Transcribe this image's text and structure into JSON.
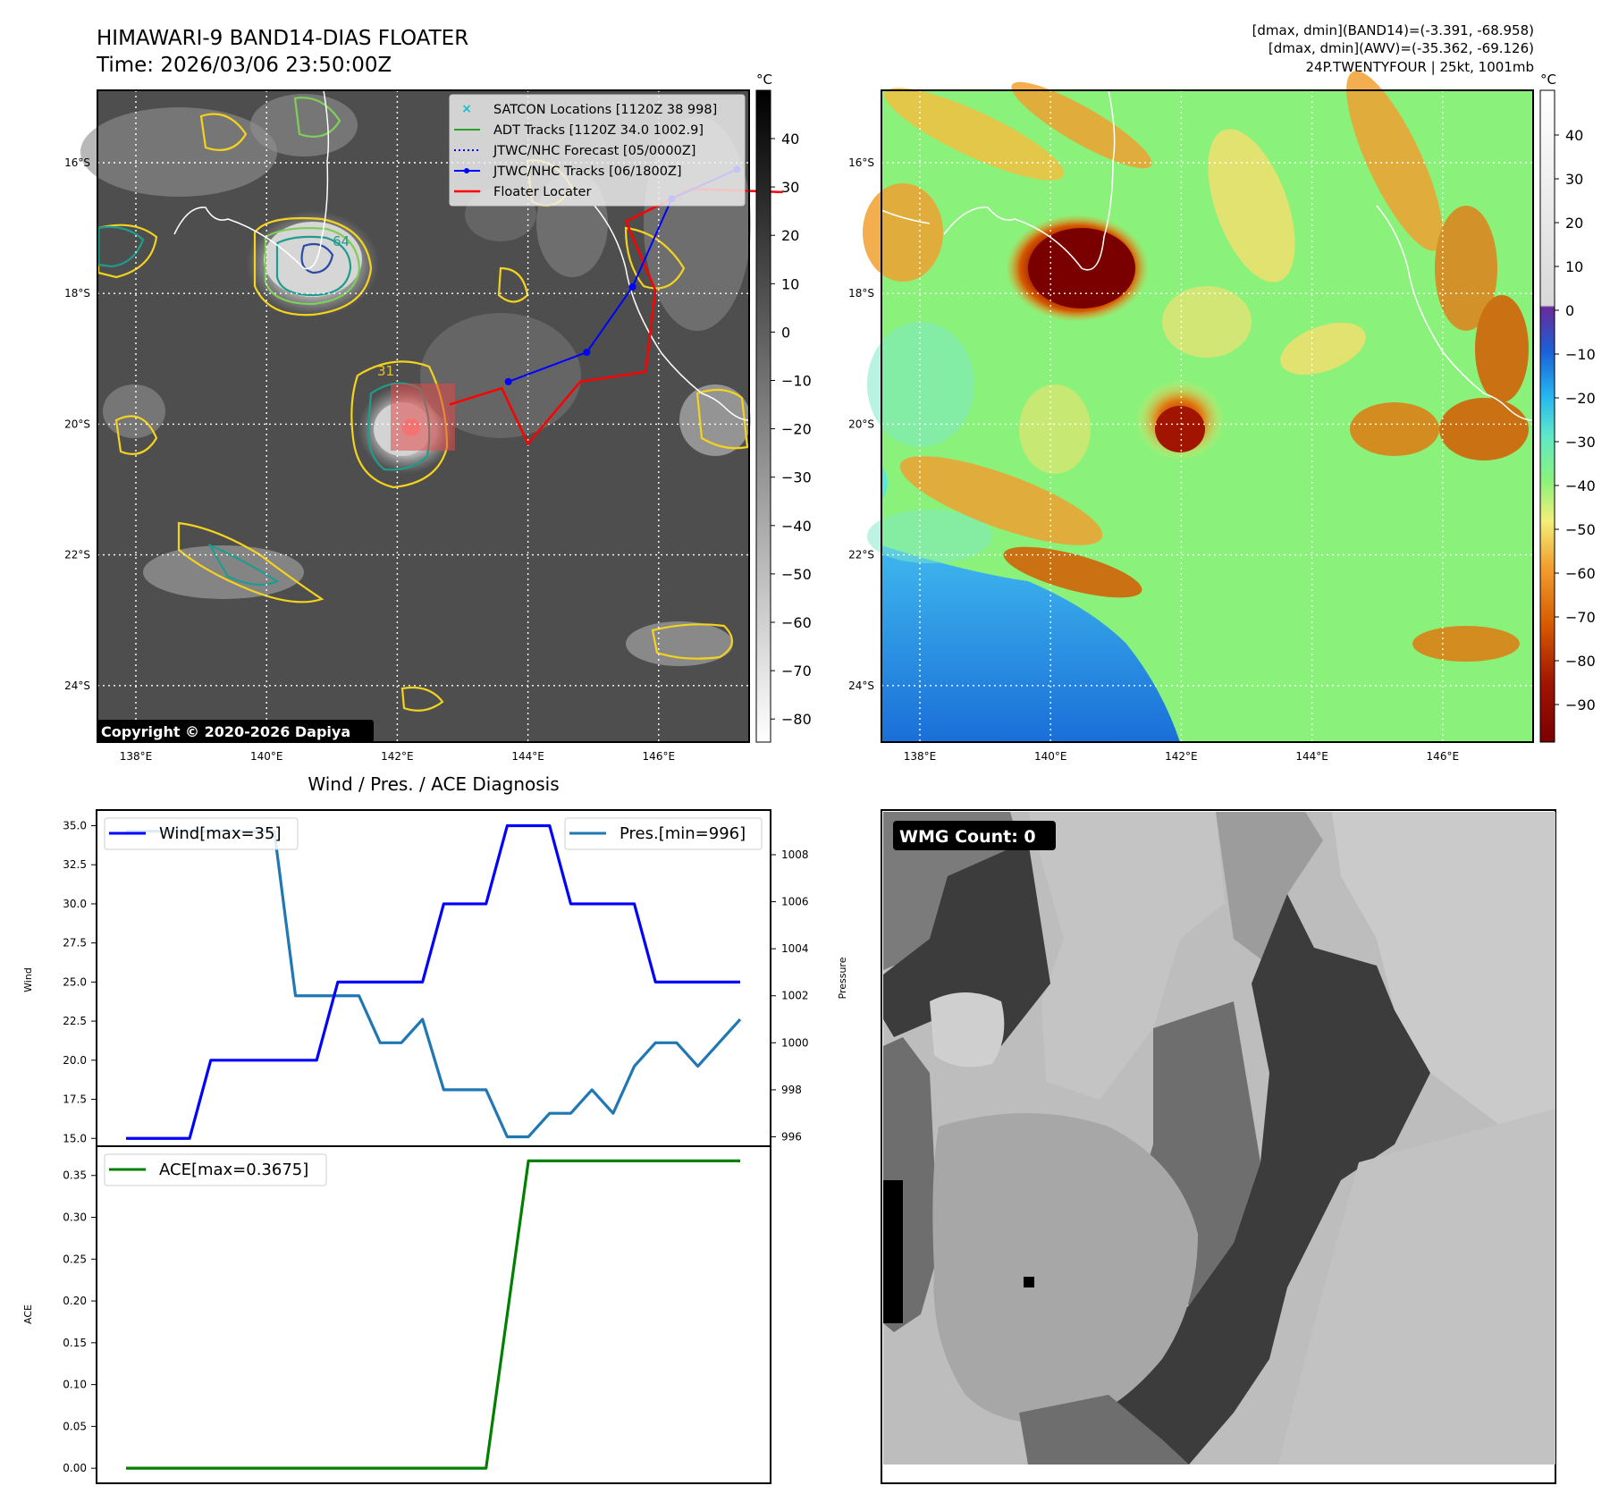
{
  "header": {
    "title_line1": "HIMAWARI-9 BAND14-DIAS FLOATER",
    "title_line2": "Time: 2026/03/06 23:50:00Z",
    "info_line1": "[dmax, dmin](BAND14)=(-3.391, -68.958)",
    "info_line2": "[dmax, dmin](AWV)=(-35.362, -69.126)",
    "info_line3": "24P.TWENTYFOUR | 25kt, 1001mb"
  },
  "maps": {
    "lat_ticks": [
      "16°S",
      "18°S",
      "20°S",
      "22°S",
      "24°S"
    ],
    "lon_ticks": [
      "138°E",
      "140°E",
      "142°E",
      "144°E",
      "146°E"
    ],
    "copyright": "Copyright © 2020-2026 Dapiya",
    "contour_labels": [
      "31",
      "64"
    ],
    "legend": [
      {
        "label": "SATCON Locations [1120Z 38 998]",
        "color": "#17becf"
      },
      {
        "label": "ADT Tracks [1120Z 34.0 1002.9]",
        "color": "#2ca02c"
      },
      {
        "label": "JTWC/NHC Forecast [05/0000Z]",
        "color": "#0000ff"
      },
      {
        "label": "JTWC/NHC Tracks [06/1800Z]",
        "color": "#0000ff"
      },
      {
        "label": "Floater Locater",
        "color": "#ff0000"
      }
    ],
    "track_lonlat": [
      [
        143.7,
        19.35
      ],
      [
        144.9,
        18.9
      ],
      [
        145.6,
        17.9
      ],
      [
        146.2,
        16.55
      ],
      [
        147.2,
        16.1
      ]
    ],
    "locator_lonlat": [
      [
        142.8,
        19.7
      ],
      [
        143.6,
        19.45
      ],
      [
        144.0,
        20.3
      ],
      [
        144.8,
        19.35
      ],
      [
        145.8,
        19.2
      ],
      [
        145.95,
        17.95
      ],
      [
        145.5,
        16.9
      ],
      [
        146.5,
        16.4
      ],
      [
        147.9,
        16.45
      ]
    ],
    "colorbar1": {
      "unit": "°C",
      "ticks": [
        "40",
        "30",
        "20",
        "10",
        "0",
        "−10",
        "−20",
        "−30",
        "−40",
        "−50",
        "−60",
        "−70",
        "−80"
      ]
    },
    "colorbar2": {
      "unit": "°C",
      "ticks": [
        "40",
        "30",
        "20",
        "10",
        "0",
        "−10",
        "−20",
        "−30",
        "−40",
        "−50",
        "−60",
        "−70",
        "−80",
        "−90"
      ]
    }
  },
  "wmg": {
    "label": "WMG Count: 0"
  },
  "chart_data": [
    {
      "type": "line",
      "title": "Wind / Pres. / ACE Diagnosis",
      "x": [
        0,
        1,
        2,
        3,
        4,
        5,
        6,
        7,
        8,
        9,
        10,
        11,
        12,
        13,
        14,
        15,
        16,
        17,
        18,
        19,
        20,
        21,
        22,
        23,
        24,
        25,
        26,
        27,
        28,
        29
      ],
      "series": [
        {
          "name": "Wind[max=35]",
          "color": "#0000ff",
          "axis": "left",
          "values": [
            15,
            15,
            15,
            15,
            20,
            20,
            20,
            20,
            20,
            20,
            25,
            25,
            25,
            25,
            25,
            30,
            30,
            30,
            35,
            35,
            35,
            30,
            30,
            30,
            30,
            25,
            25,
            25,
            25,
            25
          ]
        },
        {
          "name": "Pres.[min=996]",
          "color": "#1f77b4",
          "axis": "right",
          "values": [
            1009,
            1009,
            1009,
            1009,
            1009,
            1009,
            1009,
            1009,
            1002,
            1002,
            1002,
            1002,
            1000,
            1000,
            1001,
            998,
            998,
            998,
            996,
            996,
            997,
            997,
            998,
            997,
            999,
            1000,
            1000,
            999,
            1000,
            1001
          ]
        }
      ],
      "ylabel": "Wind",
      "y2label": "Pressure",
      "ylim": [
        14.5,
        36
      ],
      "y2lim": [
        995.6,
        1009.9
      ],
      "yticks": [
        "35.0",
        "32.5",
        "30.0",
        "27.5",
        "25.0",
        "22.5",
        "20.0",
        "17.5",
        "15.0"
      ],
      "y2ticks": [
        "1008",
        "1006",
        "1004",
        "1002",
        "1000",
        "998",
        "996"
      ]
    },
    {
      "type": "line",
      "x": [
        0,
        1,
        2,
        3,
        4,
        5,
        6,
        7,
        8,
        9,
        10,
        11,
        12,
        13,
        14,
        15,
        16,
        17,
        18,
        19,
        20,
        21,
        22,
        23,
        24,
        25,
        26,
        27,
        28,
        29
      ],
      "series": [
        {
          "name": "ACE[max=0.3675]",
          "color": "#008000",
          "values": [
            0,
            0,
            0,
            0,
            0,
            0,
            0,
            0,
            0,
            0,
            0,
            0,
            0,
            0,
            0,
            0,
            0,
            0,
            0.1838,
            0.3675,
            0.3675,
            0.3675,
            0.3675,
            0.3675,
            0.3675,
            0.3675,
            0.3675,
            0.3675,
            0.3675,
            0.3675
          ]
        }
      ],
      "ylabel": "ACE",
      "ylim": [
        -0.018,
        0.385
      ],
      "yticks": [
        "0.35",
        "0.30",
        "0.25",
        "0.20",
        "0.15",
        "0.10",
        "0.05",
        "0.00"
      ]
    }
  ]
}
